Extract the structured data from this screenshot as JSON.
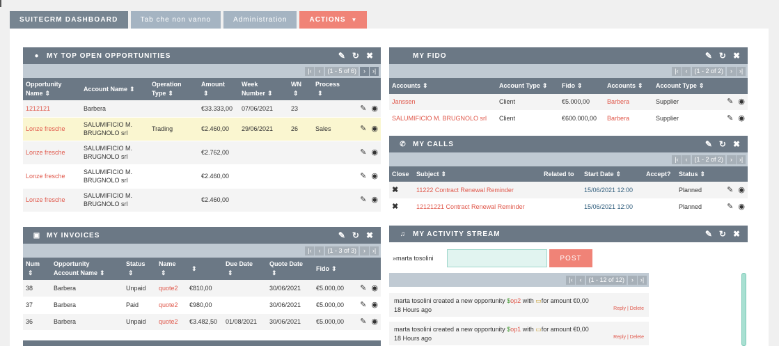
{
  "tabs": [
    {
      "label": "SUITECRM DASHBOARD"
    },
    {
      "label": "Tab che non vanno"
    },
    {
      "label": "Administration"
    },
    {
      "label": "ACTIONS"
    }
  ],
  "colors": {
    "header": "#6b7885",
    "accent": "#f08377",
    "link": "#e0584b"
  },
  "opps": {
    "title": "MY TOP OPEN OPPORTUNITIES",
    "pager": "(1 - 5 of 6)",
    "headers": {
      "name1": "Opportunity",
      "name2": "Name",
      "account": "Account Name",
      "op1": "Operation",
      "op2": "Type",
      "amount": "Amount",
      "week1": "Week",
      "week2": "Number",
      "wn": "WN",
      "process": "Process"
    },
    "rows": [
      {
        "name": "1212121",
        "account1": "Barbera",
        "account2": "",
        "type": "",
        "amount": "€33.333,00",
        "week": "07/06/2021",
        "wn": "23",
        "process": ""
      },
      {
        "name": "Lonze fresche",
        "account1": "SALUMIFICIO M.",
        "account2": "BRUGNOLO srl",
        "type": "Trading",
        "amount": "€2.460,00",
        "week": "29/06/2021",
        "wn": "26",
        "process": "Sales"
      },
      {
        "name": "Lonze fresche",
        "account1": "SALUMIFICIO M.",
        "account2": "BRUGNOLO srl",
        "type": "",
        "amount": "€2.762,00",
        "week": "",
        "wn": "",
        "process": ""
      },
      {
        "name": "Lonze fresche",
        "account1": "SALUMIFICIO M.",
        "account2": "BRUGNOLO srl",
        "type": "",
        "amount": "€2.460,00",
        "week": "",
        "wn": "",
        "process": ""
      },
      {
        "name": "Lonze fresche",
        "account1": "SALUMIFICIO M.",
        "account2": "BRUGNOLO srl",
        "type": "",
        "amount": "€2.460,00",
        "week": "",
        "wn": "",
        "process": ""
      }
    ]
  },
  "invoices": {
    "title": "MY INVOICES",
    "pager": "(1 - 3 of 3)",
    "headers": {
      "num": "Num",
      "acc1": "Opportunity",
      "acc2": "Account Name",
      "status": "Status",
      "name": "Name",
      "due": "Due Date",
      "quote": "Quote Date",
      "fido": "Fido"
    },
    "rows": [
      {
        "num": "38",
        "account": "Barbera",
        "status": "Unpaid",
        "name": "quote2",
        "amount": "€810,00",
        "due": "",
        "quote": "30/06/2021",
        "fido": "€5.000,00"
      },
      {
        "num": "37",
        "account": "Barbera",
        "status": "Paid",
        "name": "quote2",
        "amount": "€980,00",
        "due": "",
        "quote": "30/06/2021",
        "fido": "€5.000,00"
      },
      {
        "num": "36",
        "account": "Barbera",
        "status": "Unpaid",
        "name": "quote2",
        "amount": "€3.482,50",
        "due": "01/08/2021",
        "quote": "30/06/2021",
        "fido": "€5.000,00"
      }
    ]
  },
  "fido": {
    "title": "MY FIDO",
    "pager": "(1 - 2 of 2)",
    "headers": {
      "accounts": "Accounts",
      "type": "Account Type",
      "fido": "Fido",
      "accounts2": "Accounts",
      "type2": "Account Type"
    },
    "rows": [
      {
        "account": "Janssen",
        "type": "Client",
        "fido": "€5.000,00",
        "account2": "Barbera",
        "type2": "Supplier"
      },
      {
        "account": "SALUMIFICIO M. BRUGNOLO srl",
        "type": "Client",
        "fido": "€600.000,00",
        "account2": "Barbera",
        "type2": "Supplier"
      }
    ]
  },
  "calls": {
    "title": "MY CALLS",
    "pager": "(1 - 2 of 2)",
    "headers": {
      "close": "Close",
      "subject": "Subject",
      "related": "Related to",
      "start": "Start Date",
      "accept": "Accept?",
      "status": "Status"
    },
    "rows": [
      {
        "subject": "11222 Contract Renewal Reminder",
        "start": "15/06/2021 12:00",
        "status": "Planned"
      },
      {
        "subject": "12121221 Contract Renewal Reminder",
        "start": "15/06/2021 12:00",
        "status": "Planned"
      }
    ]
  },
  "stream": {
    "title": "MY ACTIVITY STREAM",
    "user": "marta tosolini",
    "post": "POST",
    "pager": "(1 - 12 of 12)",
    "entries": [
      {
        "who": "marta tosolini",
        "text1": "created a new opportunity",
        "opp": "op2",
        "text2": "with",
        "text3": "for amount €0,00",
        "time": "18 Hours ago",
        "reply": "Reply | Delete"
      },
      {
        "who": "marta tosolini",
        "text1": "created a new opportunity",
        "opp": "op1",
        "text2": "with",
        "text3": "for amount €0,00",
        "time": "18 Hours ago",
        "reply": "Reply | Delete"
      }
    ]
  }
}
